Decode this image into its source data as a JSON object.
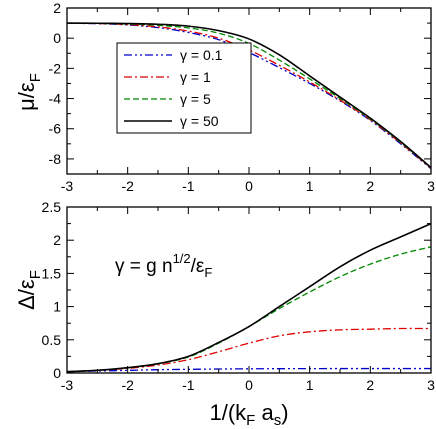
{
  "chart_data": [
    {
      "type": "line",
      "panel": "top",
      "title": "",
      "xlabel": "",
      "ylabel": [
        "μ/ε",
        "F"
      ],
      "xlim": [
        -3,
        3
      ],
      "ylim": [
        -9,
        2
      ],
      "xticks": [
        "-3",
        "-2",
        "-1",
        "0",
        "1",
        "2",
        "3"
      ],
      "yticks": [
        "2",
        "0",
        "-2",
        "-4",
        "-6",
        "-8"
      ],
      "ytick_values": [
        2,
        0,
        -2,
        -4,
        -6,
        -8
      ],
      "grid": false,
      "legend_position": "center-left",
      "x": [
        -3,
        -2.5,
        -2,
        -1.5,
        -1,
        -0.5,
        0,
        0.5,
        1,
        1.5,
        2,
        2.5,
        3
      ],
      "series": [
        {
          "name": [
            "γ = 0.1"
          ],
          "color": "#0000cc",
          "dash": "dashdotdot",
          "values": [
            0.99,
            0.96,
            0.88,
            0.7,
            0.38,
            -0.1,
            -0.95,
            -1.95,
            -3.0,
            -4.15,
            -5.45,
            -7.0,
            -8.65
          ]
        },
        {
          "name": [
            "γ = 1"
          ],
          "color": "#dd0000",
          "dash": "dashdot",
          "values": [
            0.99,
            0.97,
            0.9,
            0.75,
            0.47,
            0.0,
            -0.78,
            -1.8,
            -2.9,
            -4.1,
            -5.4,
            -6.95,
            -8.62
          ]
        },
        {
          "name": [
            "γ = 5"
          ],
          "color": "#008800",
          "dash": "dashed",
          "values": [
            1.0,
            0.98,
            0.94,
            0.85,
            0.68,
            0.33,
            -0.35,
            -1.45,
            -2.7,
            -4.0,
            -5.35,
            -6.9,
            -8.6
          ]
        },
        {
          "name": [
            "γ = 50"
          ],
          "color": "#000000",
          "dash": "solid",
          "values": [
            1.0,
            0.99,
            0.97,
            0.92,
            0.8,
            0.5,
            -0.05,
            -1.1,
            -2.5,
            -3.9,
            -5.3,
            -6.85,
            -8.58
          ]
        }
      ]
    },
    {
      "type": "line",
      "panel": "bottom",
      "title": "",
      "xlabel": [
        "1/(k",
        "F",
        " a",
        "s",
        ")"
      ],
      "ylabel": [
        "Δ/ε",
        "F"
      ],
      "annotation": [
        "γ = g n",
        "1/2",
        "/ε",
        "F"
      ],
      "xlim": [
        -3,
        3
      ],
      "ylim": [
        0,
        2.5
      ],
      "xticks": [
        "-3",
        "-2",
        "-1",
        "0",
        "1",
        "2",
        "3"
      ],
      "yticks": [
        "0",
        "0.5",
        "1",
        "1.5",
        "2",
        "2.5"
      ],
      "ytick_values": [
        0,
        0.5,
        1,
        1.5,
        2,
        2.5
      ],
      "grid": false,
      "x": [
        -3,
        -2.5,
        -2,
        -1.5,
        -1,
        -0.5,
        0,
        0.5,
        1,
        1.5,
        2,
        2.5,
        3
      ],
      "series": [
        {
          "name": [
            "γ = 0.1"
          ],
          "color": "#0000cc",
          "dash": "dashdotdot",
          "values": [
            0.02,
            0.03,
            0.04,
            0.05,
            0.055,
            0.06,
            0.063,
            0.065,
            0.066,
            0.067,
            0.067,
            0.067,
            0.067
          ]
        },
        {
          "name": [
            "γ = 1"
          ],
          "color": "#dd0000",
          "dash": "dashdot",
          "values": [
            0.02,
            0.04,
            0.07,
            0.12,
            0.2,
            0.32,
            0.45,
            0.56,
            0.62,
            0.65,
            0.66,
            0.67,
            0.67
          ]
        },
        {
          "name": [
            "γ = 5"
          ],
          "color": "#008800",
          "dash": "dashed",
          "values": [
            0.02,
            0.04,
            0.08,
            0.14,
            0.24,
            0.45,
            0.7,
            0.97,
            1.22,
            1.45,
            1.64,
            1.79,
            1.9
          ]
        },
        {
          "name": [
            "γ = 50"
          ],
          "color": "#000000",
          "dash": "solid",
          "values": [
            0.02,
            0.04,
            0.08,
            0.14,
            0.25,
            0.46,
            0.7,
            1.0,
            1.3,
            1.6,
            1.85,
            2.05,
            2.25
          ]
        }
      ]
    }
  ]
}
